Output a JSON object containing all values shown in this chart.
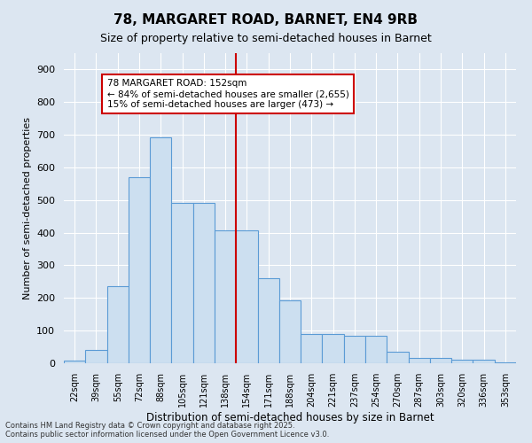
{
  "title": "78, MARGARET ROAD, BARNET, EN4 9RB",
  "subtitle": "Size of property relative to semi-detached houses in Barnet",
  "xlabel": "Distribution of semi-detached houses by size in Barnet",
  "ylabel": "Number of semi-detached properties",
  "bins": [
    "22sqm",
    "39sqm",
    "55sqm",
    "72sqm",
    "88sqm",
    "105sqm",
    "121sqm",
    "138sqm",
    "154sqm",
    "171sqm",
    "188sqm",
    "204sqm",
    "221sqm",
    "237sqm",
    "254sqm",
    "270sqm",
    "287sqm",
    "303sqm",
    "320sqm",
    "336sqm",
    "353sqm"
  ],
  "values": [
    8,
    42,
    235,
    570,
    693,
    490,
    490,
    408,
    408,
    260,
    193,
    90,
    90,
    85,
    85,
    36,
    15,
    17,
    12,
    12,
    4
  ],
  "bar_color": "#ccdff0",
  "bar_edge_color": "#5b9bd5",
  "property_size": "152sqm",
  "pct_smaller": 84,
  "count_smaller": 2655,
  "pct_larger": 15,
  "count_larger": 473,
  "annotation_box_color": "#ffffff",
  "annotation_box_edge": "#cc0000",
  "vline_color": "#cc0000",
  "background_color": "#dce6f1",
  "footer1": "Contains HM Land Registry data © Crown copyright and database right 2025.",
  "footer2": "Contains public sector information licensed under the Open Government Licence v3.0.",
  "ylim": [
    0,
    950
  ],
  "yticks": [
    0,
    100,
    200,
    300,
    400,
    500,
    600,
    700,
    800,
    900
  ]
}
